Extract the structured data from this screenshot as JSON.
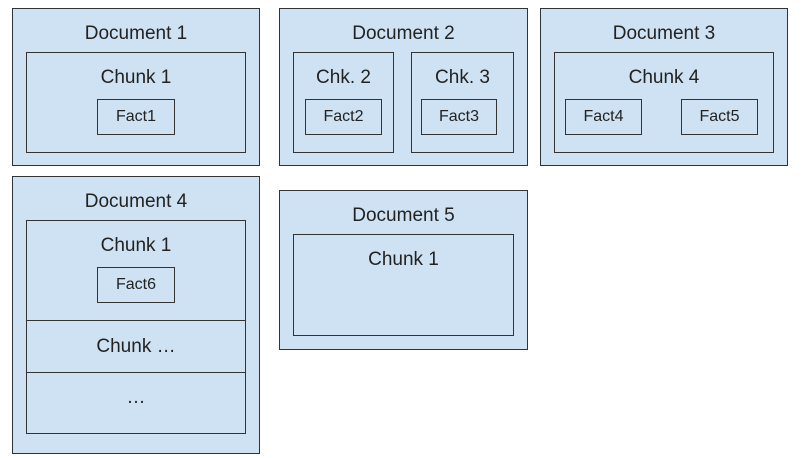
{
  "documents": [
    {
      "title": "Document 1",
      "chunks": [
        {
          "label": "Chunk 1",
          "facts": [
            "Fact1"
          ]
        }
      ]
    },
    {
      "title": "Document 2",
      "chunks": [
        {
          "label": "Chk. 2",
          "facts": [
            "Fact2"
          ]
        },
        {
          "label": "Chk. 3",
          "facts": [
            "Fact3"
          ]
        }
      ]
    },
    {
      "title": "Document 3",
      "chunks": [
        {
          "label": "Chunk 4",
          "facts": [
            "Fact4",
            "Fact5"
          ]
        }
      ]
    },
    {
      "title": "Document 4",
      "chunks": [
        {
          "label": "Chunk 1",
          "facts": [
            "Fact6"
          ]
        },
        {
          "label": "Chunk …"
        },
        {
          "label": "…"
        }
      ]
    },
    {
      "title": "Document 5",
      "chunks": [
        {
          "label": "Chunk 1"
        }
      ]
    }
  ],
  "colors": {
    "fill": "#cfe2f3",
    "stroke": "#333333",
    "text": "#222222"
  }
}
